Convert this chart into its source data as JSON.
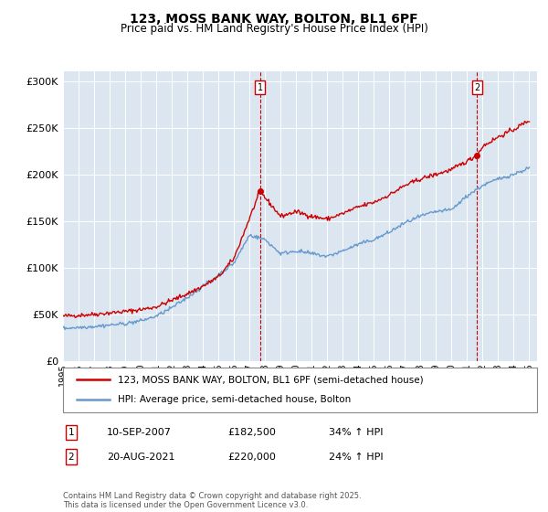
{
  "title": "123, MOSS BANK WAY, BOLTON, BL1 6PF",
  "subtitle": "Price paid vs. HM Land Registry's House Price Index (HPI)",
  "ylabel_ticks": [
    "£0",
    "£50K",
    "£100K",
    "£150K",
    "£200K",
    "£250K",
    "£300K"
  ],
  "ytick_values": [
    0,
    50000,
    100000,
    150000,
    200000,
    250000,
    300000
  ],
  "ylim": [
    0,
    310000
  ],
  "plot_bg_color": "#dce6f1",
  "red_color": "#cc0000",
  "blue_color": "#6699cc",
  "marker1_date_x": 2007.69,
  "marker2_date_x": 2021.64,
  "marker1_y": 182500,
  "marker2_y": 220000,
  "legend_line1": "123, MOSS BANK WAY, BOLTON, BL1 6PF (semi-detached house)",
  "legend_line2": "HPI: Average price, semi-detached house, Bolton",
  "table_rows": [
    {
      "num": "1",
      "date": "10-SEP-2007",
      "price": "£182,500",
      "hpi": "34% ↑ HPI"
    },
    {
      "num": "2",
      "date": "20-AUG-2021",
      "price": "£220,000",
      "hpi": "24% ↑ HPI"
    }
  ],
  "copyright_text": "Contains HM Land Registry data © Crown copyright and database right 2025.\nThis data is licensed under the Open Government Licence v3.0.",
  "xmin": 1995,
  "xmax": 2025.5,
  "xticks": [
    1995,
    1996,
    1997,
    1998,
    1999,
    2000,
    2001,
    2002,
    2003,
    2004,
    2005,
    2006,
    2007,
    2008,
    2009,
    2010,
    2011,
    2012,
    2013,
    2014,
    2015,
    2016,
    2017,
    2018,
    2019,
    2020,
    2021,
    2022,
    2023,
    2024,
    2025
  ]
}
